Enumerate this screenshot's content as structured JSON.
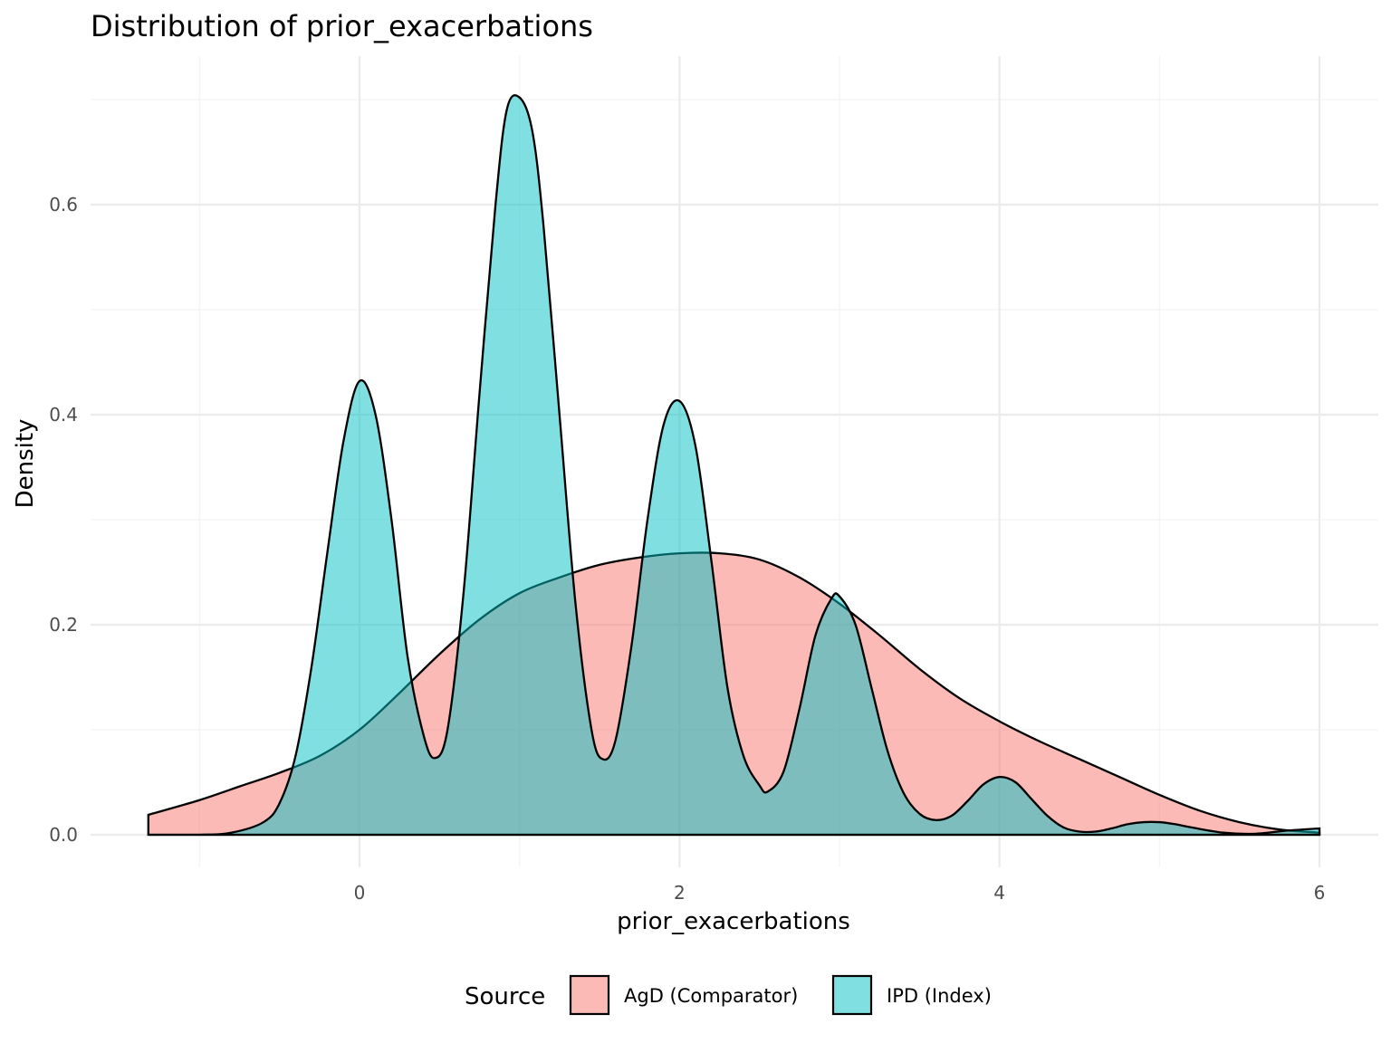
{
  "chart_data": {
    "type": "area",
    "title": "Distribution of prior_exacerbations",
    "xlabel": "prior_exacerbations",
    "ylabel": "Density",
    "xlim": [
      -1.32,
      6.0
    ],
    "ylim": [
      0,
      0.7
    ],
    "x_ticks": [
      0,
      2,
      4,
      6
    ],
    "y_ticks": [
      0.0,
      0.2,
      0.4,
      0.6
    ],
    "x_tick_labels": [
      "0",
      "2",
      "4",
      "6"
    ],
    "y_tick_labels": [
      "0.0",
      "0.2",
      "0.4",
      "0.6"
    ],
    "grid": true,
    "legend": {
      "title": "Source",
      "position": "bottom"
    },
    "series": [
      {
        "name": "AgD (Comparator)",
        "color": "#F8766D",
        "x": [
          -1.32,
          -1.0,
          -0.75,
          -0.5,
          -0.25,
          0.0,
          0.25,
          0.5,
          0.75,
          1.0,
          1.25,
          1.5,
          1.75,
          2.0,
          2.25,
          2.5,
          2.75,
          3.0,
          3.25,
          3.5,
          3.75,
          4.0,
          4.25,
          4.5,
          4.75,
          5.0,
          5.25,
          5.5,
          5.75,
          6.0
        ],
        "y": [
          0.019,
          0.033,
          0.046,
          0.059,
          0.075,
          0.1,
          0.135,
          0.172,
          0.205,
          0.23,
          0.245,
          0.257,
          0.264,
          0.268,
          0.268,
          0.262,
          0.245,
          0.22,
          0.19,
          0.158,
          0.13,
          0.108,
          0.089,
          0.072,
          0.055,
          0.038,
          0.023,
          0.012,
          0.005,
          0.002
        ]
      },
      {
        "name": "IPD (Index)",
        "color": "#00BFC4",
        "x": [
          -1.32,
          -1.0,
          -0.8,
          -0.6,
          -0.5,
          -0.4,
          -0.3,
          -0.2,
          -0.1,
          0.0,
          0.1,
          0.2,
          0.3,
          0.4,
          0.47,
          0.55,
          0.65,
          0.75,
          0.85,
          0.92,
          1.0,
          1.08,
          1.15,
          1.25,
          1.35,
          1.45,
          1.52,
          1.6,
          1.7,
          1.8,
          1.9,
          2.0,
          2.1,
          2.2,
          2.3,
          2.4,
          2.5,
          2.55,
          2.65,
          2.75,
          2.85,
          2.95,
          3.0,
          3.1,
          3.2,
          3.3,
          3.4,
          3.5,
          3.6,
          3.7,
          3.8,
          3.9,
          4.0,
          4.1,
          4.2,
          4.3,
          4.4,
          4.5,
          4.6,
          4.7,
          4.8,
          4.9,
          5.0,
          5.1,
          5.2,
          5.4,
          5.6,
          5.8,
          6.0
        ],
        "y": [
          0.0,
          0.0,
          0.002,
          0.012,
          0.03,
          0.075,
          0.16,
          0.27,
          0.375,
          0.432,
          0.4,
          0.3,
          0.17,
          0.095,
          0.073,
          0.1,
          0.23,
          0.42,
          0.6,
          0.69,
          0.702,
          0.67,
          0.58,
          0.4,
          0.22,
          0.1,
          0.072,
          0.09,
          0.18,
          0.3,
          0.39,
          0.413,
          0.37,
          0.26,
          0.14,
          0.075,
          0.047,
          0.041,
          0.06,
          0.12,
          0.19,
          0.225,
          0.227,
          0.2,
          0.14,
          0.08,
          0.04,
          0.02,
          0.014,
          0.018,
          0.032,
          0.048,
          0.055,
          0.05,
          0.034,
          0.018,
          0.007,
          0.003,
          0.003,
          0.006,
          0.01,
          0.012,
          0.012,
          0.01,
          0.007,
          0.002,
          0.001,
          0.004,
          0.006
        ]
      }
    ]
  }
}
